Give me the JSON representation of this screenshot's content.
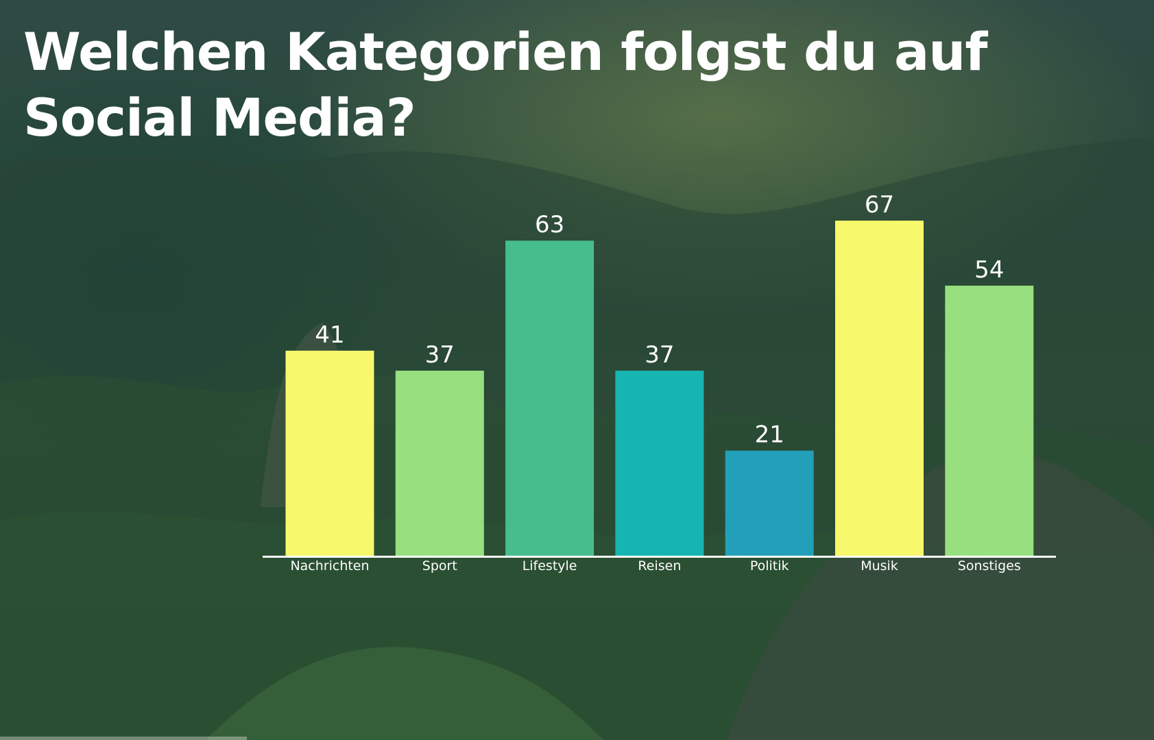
{
  "slide": {
    "title": "Welchen Kategorien folgst du auf Social Media?"
  },
  "chart_data": {
    "type": "bar",
    "title": "Welchen Kategorien folgst du auf Social Media?",
    "xlabel": "",
    "ylabel": "",
    "ylim": [
      0,
      67
    ],
    "grid": false,
    "legend": "none",
    "categories": [
      "Nachrichten",
      "Sport",
      "Lifestyle",
      "Reisen",
      "Politik",
      "Musik",
      "Sonstiges"
    ],
    "values": [
      41,
      37,
      63,
      37,
      21,
      67,
      54
    ],
    "colors": [
      "#f7f86c",
      "#98e07f",
      "#47bd8e",
      "#17b5b1",
      "#229fb9",
      "#f7f86c",
      "#98e07f"
    ]
  }
}
